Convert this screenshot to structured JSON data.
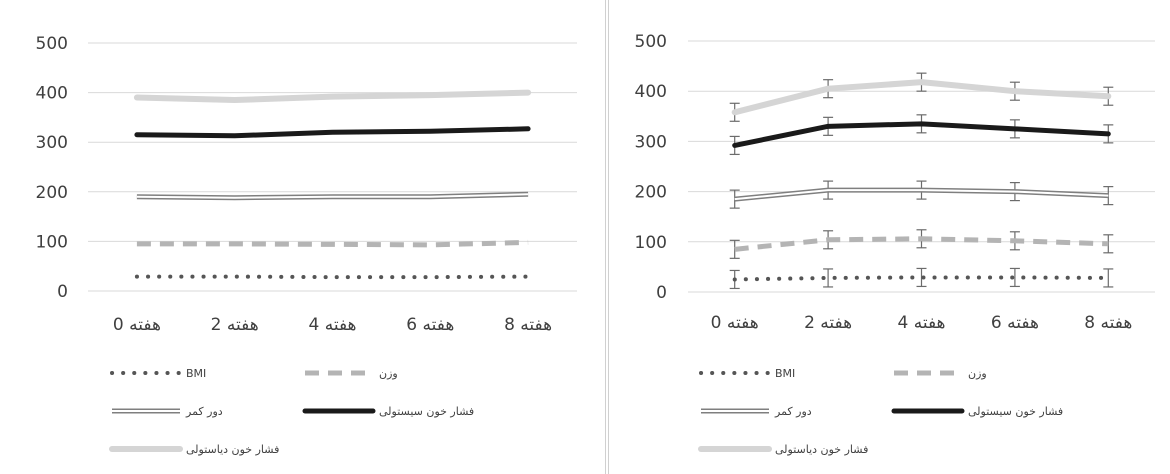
{
  "chart_data": [
    {
      "type": "line",
      "categories": [
        "0 هفته",
        "2 هفته",
        "4 هفته",
        "6 هفته",
        "8 هفته"
      ],
      "ylim": [
        0,
        500
      ],
      "yticks": [
        0,
        100,
        200,
        300,
        400,
        500
      ],
      "grid": true,
      "legend_position": "bottom",
      "series": [
        {
          "name": "BMI",
          "values": [
            29,
            29,
            28,
            28,
            29
          ],
          "style": "dotted",
          "color": "#555555"
        },
        {
          "name": "وزن",
          "values": [
            95,
            95,
            94,
            93,
            98
          ],
          "style": "dashed",
          "color": "#b4b4b4"
        },
        {
          "name": "دور کمر",
          "values": [
            190,
            188,
            190,
            190,
            195
          ],
          "style": "double",
          "color": "#7f7f7f"
        },
        {
          "name": "فشار خون سیستولی",
          "values": [
            315,
            313,
            320,
            322,
            327
          ],
          "style": "solid-thick",
          "color": "#1a1a1a"
        },
        {
          "name": "فشار خون دیاستولی",
          "values": [
            390,
            385,
            392,
            395,
            400
          ],
          "style": "solid-light",
          "color": "#d5d5d5"
        }
      ]
    },
    {
      "type": "line",
      "categories": [
        "0 هفته",
        "2 هفته",
        "4 هفته",
        "6 هفته",
        "8 هفته"
      ],
      "ylim": [
        0,
        500
      ],
      "yticks": [
        0,
        100,
        200,
        300,
        400,
        500
      ],
      "grid": true,
      "legend_position": "bottom",
      "series": [
        {
          "name": "BMI",
          "values": [
            25,
            28,
            29,
            29,
            28
          ],
          "style": "dotted",
          "color": "#555555"
        },
        {
          "name": "وزن",
          "values": [
            85,
            104,
            106,
            102,
            96
          ],
          "style": "dashed",
          "color": "#b4b4b4"
        },
        {
          "name": "دور کمر",
          "values": [
            185,
            203,
            203,
            200,
            192
          ],
          "style": "double",
          "color": "#7f7f7f"
        },
        {
          "name": "فشار خون سیستولی",
          "values": [
            292,
            330,
            335,
            325,
            315
          ],
          "style": "solid-thick",
          "color": "#1a1a1a"
        },
        {
          "name": "فشار خون دیاستولی",
          "values": [
            358,
            405,
            418,
            400,
            390
          ],
          "style": "solid-light",
          "color": "#d5d5d5"
        }
      ]
    }
  ]
}
